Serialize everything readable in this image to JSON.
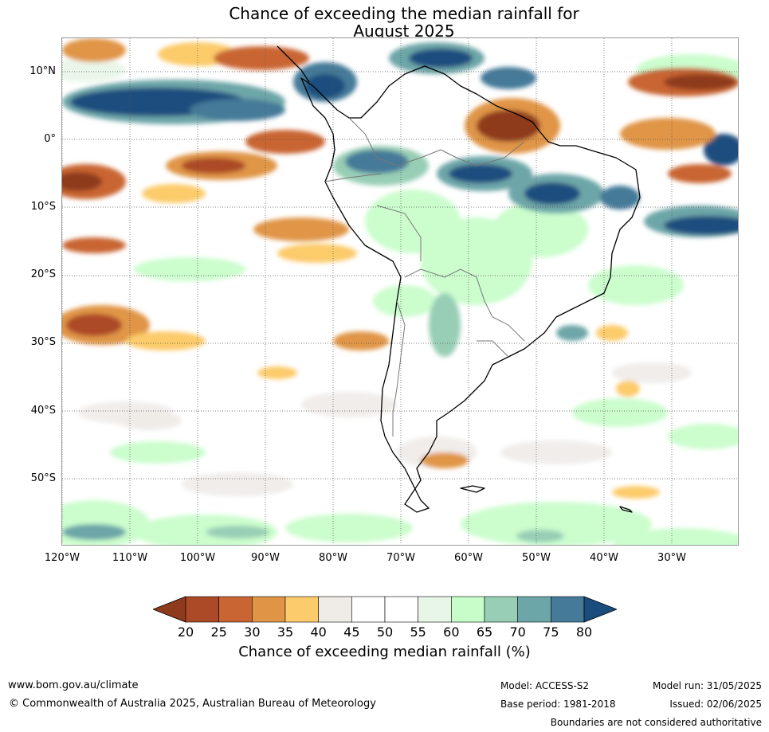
{
  "title": {
    "line1": "Chance of exceeding the median rainfall for",
    "line2": "August 2025"
  },
  "latitude_ticks": [
    "10°N",
    "0°",
    "10°S",
    "20°S",
    "30°S",
    "40°S",
    "50°S"
  ],
  "longitude_ticks": [
    "120°W",
    "110°W",
    "100°W",
    "90°W",
    "80°W",
    "70°W",
    "60°W",
    "50°W",
    "40°W",
    "30°W"
  ],
  "colorbar": {
    "title": "Chance of exceeding median rainfall (%)",
    "labels": [
      "20",
      "25",
      "30",
      "35",
      "40",
      "45",
      "50",
      "55",
      "60",
      "65",
      "70",
      "75",
      "80"
    ],
    "colors": [
      "#8e3a1c",
      "#ac4a27",
      "#c96533",
      "#e09546",
      "#fccb6b",
      "#efece8",
      "#ffffff",
      "#ffffff",
      "#e8f6e8",
      "#c6fdc8",
      "#98ceb5",
      "#6da6a8",
      "#457a99",
      "#1a4d7e"
    ]
  },
  "footer": {
    "website": "www.bom.gov.au/climate",
    "copyright": "© Commonwealth of Australia 2025, Australian Bureau of Meteorology",
    "model": "Model: ACCESS-S2",
    "base_period": "Base period: 1981-2018",
    "model_run": "Model run: 31/05/2025",
    "issued": "Issued: 02/06/2025",
    "disclaimer": "Boundaries are not considered authoritative"
  }
}
